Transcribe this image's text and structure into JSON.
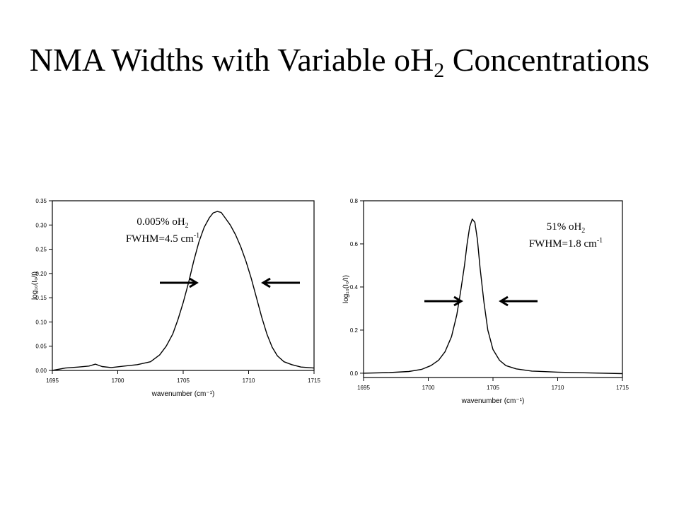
{
  "slide": {
    "title_main": "NMA Widths with Variable oH",
    "title_sub": "2",
    "title_end": " Concentrations"
  },
  "chart_data": [
    {
      "type": "line",
      "xlabel": "wavenumber (cm⁻¹)",
      "ylabel": "log₁₀(I₀/I)",
      "xlim": [
        1695,
        1715
      ],
      "ylim": [
        0,
        0.35
      ],
      "xticks": [
        1695,
        1700,
        1705,
        1710,
        1715
      ],
      "yticks": [
        0.0,
        0.05,
        0.1,
        0.15,
        0.2,
        0.25,
        0.3,
        0.35
      ],
      "ytick_decimals": 2,
      "annotation_line1": "0.005% oH",
      "annotation_line1_sub": "2",
      "annotation_line2": "FWHM=4.5 cm",
      "annotation_line2_sup": "-1",
      "series": [
        {
          "x": [
            1695.0,
            1696.0,
            1697.0,
            1697.8,
            1698.3,
            1698.8,
            1699.5,
            1700.5,
            1701.5,
            1702.5,
            1703.2,
            1703.7,
            1704.2,
            1704.6,
            1705.0,
            1705.4,
            1705.8,
            1706.2,
            1706.6,
            1707.0,
            1707.3,
            1707.6,
            1707.9,
            1708.2,
            1708.6,
            1709.0,
            1709.4,
            1709.8,
            1710.2,
            1710.6,
            1711.0,
            1711.4,
            1711.8,
            1712.2,
            1712.7,
            1713.3,
            1714.0,
            1715.0
          ],
          "y": [
            0.0,
            0.005,
            0.007,
            0.009,
            0.013,
            0.008,
            0.006,
            0.009,
            0.012,
            0.018,
            0.032,
            0.05,
            0.075,
            0.105,
            0.14,
            0.18,
            0.225,
            0.265,
            0.295,
            0.315,
            0.325,
            0.328,
            0.326,
            0.315,
            0.3,
            0.28,
            0.255,
            0.225,
            0.19,
            0.15,
            0.11,
            0.075,
            0.048,
            0.03,
            0.018,
            0.012,
            0.007,
            0.005
          ]
        }
      ]
    },
    {
      "type": "line",
      "xlabel": "wavenumber (cm⁻¹)",
      "ylabel": "log₁₀(I₀/I)",
      "xlim": [
        1695,
        1715
      ],
      "ylim": [
        -0.02,
        0.8
      ],
      "xticks": [
        1695,
        1700,
        1705,
        1710,
        1715
      ],
      "yticks": [
        0.0,
        0.2,
        0.4,
        0.6,
        0.8
      ],
      "ytick_decimals": 1,
      "annotation_line1": "51% oH",
      "annotation_line1_sub": "2",
      "annotation_line2": "FWHM=1.8 cm",
      "annotation_line2_sup": "-1",
      "series": [
        {
          "x": [
            1695.0,
            1697.0,
            1698.5,
            1699.5,
            1700.2,
            1700.8,
            1701.3,
            1701.8,
            1702.2,
            1702.5,
            1702.8,
            1703.0,
            1703.2,
            1703.4,
            1703.6,
            1703.8,
            1704.0,
            1704.3,
            1704.6,
            1705.0,
            1705.5,
            1706.0,
            1706.8,
            1708.0,
            1710.0,
            1712.0,
            1715.0
          ],
          "y": [
            0.0,
            0.003,
            0.008,
            0.018,
            0.035,
            0.06,
            0.1,
            0.17,
            0.27,
            0.38,
            0.5,
            0.6,
            0.68,
            0.715,
            0.7,
            0.62,
            0.49,
            0.33,
            0.2,
            0.11,
            0.06,
            0.035,
            0.02,
            0.01,
            0.005,
            0.002,
            -0.002
          ]
        }
      ]
    }
  ]
}
